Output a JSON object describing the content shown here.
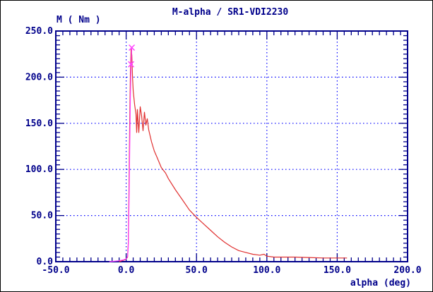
{
  "chart_data": {
    "type": "line",
    "title": "M-alpha / SR1-VDI2230",
    "ylabel": "M ( Nm )",
    "xlabel": "alpha (deg)",
    "xlim": [
      -50,
      200
    ],
    "ylim": [
      0,
      250
    ],
    "x_ticks": [
      "-50.0",
      "0.0",
      "50.0",
      "100.0",
      "150.0",
      "200.0"
    ],
    "y_ticks": [
      "0.0",
      "50.0",
      "100.0",
      "150.0",
      "200.0",
      "250.0"
    ],
    "grid": true,
    "colors": {
      "axis": "#00008b",
      "grid": "#0000ff",
      "curve": "#e03030",
      "marker": "#ff40ff",
      "text": "#00008b"
    },
    "series": [
      {
        "color": "#e03030",
        "points": [
          [
            -5,
            0
          ],
          [
            -3,
            1
          ],
          [
            -1,
            2
          ],
          [
            0,
            3
          ],
          [
            1,
            5
          ],
          [
            1.5,
            20
          ],
          [
            2,
            80
          ],
          [
            2.5,
            150
          ],
          [
            3,
            205
          ],
          [
            3.5,
            230
          ],
          [
            4,
            224
          ],
          [
            4.5,
            200
          ],
          [
            5,
            185
          ],
          [
            6,
            170
          ],
          [
            7,
            160
          ],
          [
            7.5,
            140
          ],
          [
            8,
            165
          ],
          [
            9,
            140
          ],
          [
            10,
            168
          ],
          [
            11,
            158
          ],
          [
            12,
            142
          ],
          [
            13,
            162
          ],
          [
            14,
            148
          ],
          [
            15,
            155
          ],
          [
            16,
            143
          ],
          [
            18,
            130
          ],
          [
            20,
            120
          ],
          [
            22,
            113
          ],
          [
            25,
            102
          ],
          [
            28,
            96
          ],
          [
            30,
            90
          ],
          [
            35,
            78
          ],
          [
            40,
            67
          ],
          [
            45,
            56
          ],
          [
            50,
            48
          ],
          [
            55,
            41
          ],
          [
            60,
            34
          ],
          [
            65,
            27
          ],
          [
            70,
            21
          ],
          [
            75,
            16
          ],
          [
            80,
            12
          ],
          [
            85,
            10
          ],
          [
            90,
            8
          ],
          [
            95,
            7
          ],
          [
            98,
            8
          ],
          [
            100,
            6
          ],
          [
            105,
            5
          ],
          [
            110,
            5
          ],
          [
            120,
            5
          ],
          [
            130,
            4.5
          ],
          [
            140,
            4
          ],
          [
            150,
            4
          ],
          [
            157,
            4
          ]
        ]
      },
      {
        "color": "#ff40ff",
        "points": [
          [
            -12,
            0
          ],
          [
            -5,
            1
          ],
          [
            -2,
            2
          ],
          [
            0,
            3
          ],
          [
            1,
            6
          ],
          [
            1.5,
            15
          ],
          [
            2,
            60
          ],
          [
            2.5,
            120
          ],
          [
            3,
            180
          ],
          [
            3.5,
            214
          ],
          [
            4,
            232
          ]
        ]
      }
    ],
    "markers": [
      {
        "x": 4,
        "y": 232,
        "symbol": "x"
      },
      {
        "x": 3.5,
        "y": 214,
        "symbol": "x"
      }
    ]
  }
}
